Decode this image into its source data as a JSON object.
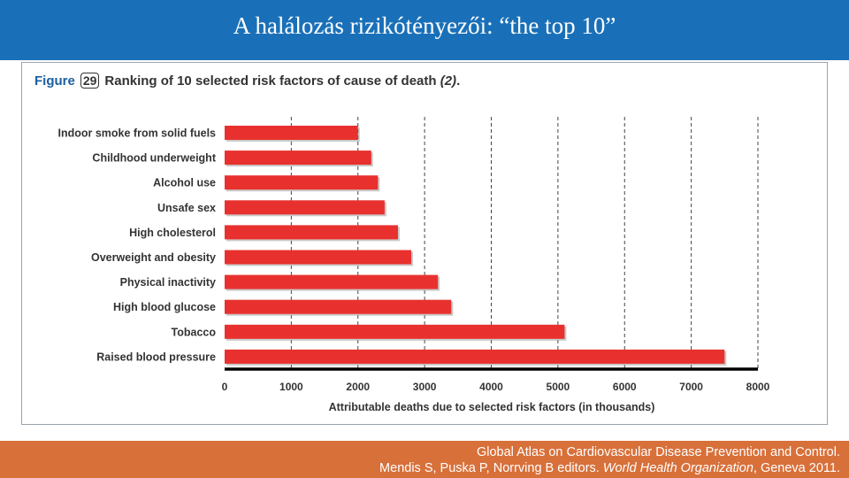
{
  "slide": {
    "title": "A halálozás rizikótényezői: “the top 10”"
  },
  "figure": {
    "label": "Figure",
    "number": "29",
    "caption": "Ranking of 10 selected risk factors of cause of death",
    "ref": "(2)",
    "ref_suffix": "."
  },
  "chart_data": {
    "type": "bar",
    "orientation": "horizontal",
    "categories": [
      "Indoor smoke from solid fuels",
      "Childhood underweight",
      "Alcohol use",
      "Unsafe sex",
      "High cholesterol",
      "Overweight and obesity",
      "Physical inactivity",
      "High blood glucose",
      "Tobacco",
      "Raised blood pressure"
    ],
    "values": [
      2000,
      2200,
      2300,
      2400,
      2600,
      2800,
      3200,
      3400,
      5100,
      7500
    ],
    "xlabel": "Attributable deaths due to selected risk factors (in thousands)",
    "ylabel": "",
    "xlim": [
      0,
      8000
    ],
    "ticks": [
      "0",
      "1000",
      "2000",
      "3000",
      "4000",
      "5000",
      "6000",
      "7000",
      "8000"
    ],
    "grid": "vertical dashed",
    "bar_color": "#e8312e"
  },
  "source": {
    "line1": "Global Atlas on Cardiovascular Disease Prevention and Control.",
    "line2_prefix": "Mendis S, Puska P, Norrving B editors. ",
    "line2_italic": "World Health Organization",
    "line2_suffix": ", Geneva 2011."
  }
}
